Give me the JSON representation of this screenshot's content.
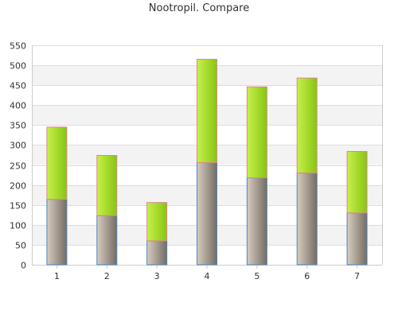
{
  "chart_data": {
    "type": "bar",
    "stacked": true,
    "title": "Nootropil. Compare",
    "xlabel": "",
    "ylabel": "",
    "categories": [
      "1",
      "2",
      "3",
      "4",
      "5",
      "6",
      "7"
    ],
    "series": [
      {
        "values": [
          164,
          123,
          60,
          256,
          218,
          230,
          130
        ]
      },
      {
        "values": [
          181,
          151,
          96,
          259,
          228,
          238,
          154
        ]
      }
    ],
    "ylim": [
      0,
      550
    ],
    "yticks": [
      "0",
      "50",
      "100",
      "150",
      "200",
      "250",
      "300",
      "350",
      "400",
      "450",
      "500",
      "550"
    ],
    "grid": true,
    "legend": "none",
    "colors": {
      "bottom_light": "#d6ccc0",
      "bottom_dark": "#756c62",
      "bottom_stroke": "#4f86b6",
      "top_light": "#c8f04a",
      "top_dark": "#86c513",
      "top_stroke": "#d98a8a",
      "band": "#f3f3f3",
      "grid": "#dddddd",
      "axis": "#cccccc"
    }
  }
}
